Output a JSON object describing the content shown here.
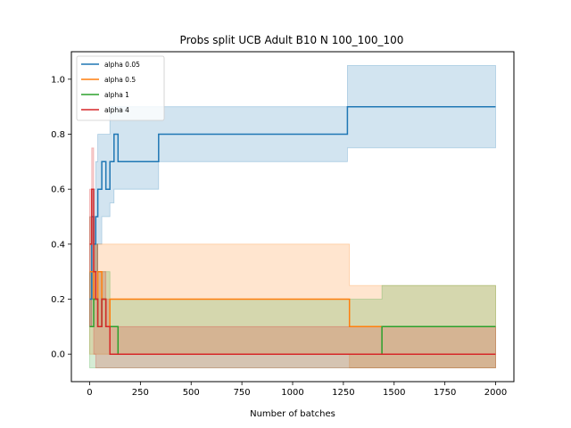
{
  "chart_data": {
    "type": "line",
    "title": "Probs split UCB Adult B10 N 100_100_100",
    "xlabel": "Number of batches",
    "ylabel": "",
    "xlim": [
      -90,
      2090
    ],
    "ylim": [
      -0.1,
      1.1
    ],
    "xticks": [
      0,
      250,
      500,
      750,
      1000,
      1250,
      1500,
      1750,
      2000
    ],
    "yticks": [
      0.0,
      0.2,
      0.4,
      0.6,
      0.8,
      1.0
    ],
    "grid": false,
    "legend_position": "top-left",
    "series": [
      {
        "name": "alpha 0.05",
        "color": "#1f77b4",
        "x": [
          0,
          10,
          20,
          30,
          40,
          60,
          80,
          100,
          120,
          140,
          160,
          180,
          220,
          300,
          340,
          400,
          500,
          600,
          700,
          760,
          860,
          1000,
          1100,
          1200,
          1270,
          1300,
          1400,
          1500,
          1600,
          1700,
          1800,
          1900,
          2000
        ],
        "y": [
          0.2,
          0.5,
          0.4,
          0.5,
          0.6,
          0.7,
          0.6,
          0.7,
          0.8,
          0.7,
          0.7,
          0.7,
          0.7,
          0.7,
          0.8,
          0.8,
          0.8,
          0.8,
          0.8,
          0.8,
          0.8,
          0.8,
          0.8,
          0.8,
          0.9,
          0.9,
          0.9,
          0.9,
          0.9,
          0.9,
          0.9,
          0.9,
          0.9
        ],
        "upper": [
          0.5,
          0.6,
          0.6,
          0.7,
          0.8,
          0.8,
          0.8,
          0.9,
          0.9,
          0.9,
          0.9,
          0.9,
          0.9,
          0.9,
          0.9,
          0.9,
          0.9,
          0.9,
          0.9,
          0.9,
          0.9,
          0.9,
          0.9,
          0.9,
          1.05,
          1.05,
          1.05,
          1.05,
          1.05,
          1.05,
          1.05,
          1.05,
          1.05
        ],
        "lower": [
          0.1,
          0.2,
          0.3,
          0.3,
          0.4,
          0.5,
          0.5,
          0.55,
          0.6,
          0.6,
          0.6,
          0.6,
          0.6,
          0.6,
          0.7,
          0.7,
          0.7,
          0.7,
          0.7,
          0.7,
          0.7,
          0.7,
          0.7,
          0.7,
          0.75,
          0.75,
          0.75,
          0.75,
          0.75,
          0.75,
          0.75,
          0.75,
          0.75
        ]
      },
      {
        "name": "alpha 0.5",
        "color": "#ff7f0e",
        "x": [
          0,
          20,
          40,
          60,
          80,
          100,
          140,
          200,
          300,
          400,
          500,
          600,
          700,
          800,
          900,
          1000,
          1100,
          1200,
          1280,
          1400,
          1500,
          1600,
          1700,
          1800,
          1900,
          2000
        ],
        "y": [
          0.3,
          0.2,
          0.3,
          0.2,
          0.1,
          0.2,
          0.2,
          0.2,
          0.2,
          0.2,
          0.2,
          0.2,
          0.2,
          0.2,
          0.2,
          0.2,
          0.2,
          0.2,
          0.1,
          0.1,
          0.1,
          0.1,
          0.1,
          0.1,
          0.1,
          0.1
        ],
        "upper": [
          0.5,
          0.4,
          0.4,
          0.4,
          0.4,
          0.4,
          0.4,
          0.4,
          0.4,
          0.4,
          0.4,
          0.4,
          0.4,
          0.4,
          0.4,
          0.4,
          0.4,
          0.4,
          0.25,
          0.25,
          0.25,
          0.25,
          0.25,
          0.25,
          0.25,
          0.25
        ],
        "lower": [
          0.0,
          0.0,
          0.0,
          0.0,
          0.0,
          0.0,
          0.0,
          0.0,
          0.0,
          0.0,
          0.0,
          0.0,
          0.0,
          0.0,
          0.0,
          0.0,
          0.0,
          0.0,
          -0.05,
          -0.05,
          -0.05,
          -0.05,
          -0.05,
          -0.05,
          -0.05,
          -0.05
        ]
      },
      {
        "name": "alpha 1",
        "color": "#2ca02c",
        "x": [
          0,
          20,
          40,
          60,
          80,
          100,
          140,
          200,
          300,
          400,
          500,
          600,
          700,
          800,
          900,
          1000,
          1100,
          1200,
          1300,
          1440,
          1500,
          1600,
          1700,
          1800,
          1900,
          2000
        ],
        "y": [
          0.1,
          0.2,
          0.1,
          0.2,
          0.1,
          0.1,
          0.0,
          0.0,
          0.0,
          0.0,
          0.0,
          0.0,
          0.0,
          0.0,
          0.0,
          0.0,
          0.0,
          0.0,
          0.0,
          0.1,
          0.1,
          0.1,
          0.1,
          0.1,
          0.1,
          0.1
        ],
        "upper": [
          0.3,
          0.4,
          0.3,
          0.3,
          0.3,
          0.2,
          0.2,
          0.2,
          0.2,
          0.2,
          0.2,
          0.2,
          0.2,
          0.2,
          0.2,
          0.2,
          0.2,
          0.2,
          0.2,
          0.25,
          0.25,
          0.25,
          0.25,
          0.25,
          0.25,
          0.25
        ],
        "lower": [
          -0.05,
          -0.05,
          -0.05,
          -0.05,
          -0.05,
          -0.05,
          -0.05,
          -0.05,
          -0.05,
          -0.05,
          -0.05,
          -0.05,
          -0.05,
          -0.05,
          -0.05,
          -0.05,
          -0.05,
          -0.05,
          -0.05,
          -0.05,
          -0.05,
          -0.05,
          -0.05,
          -0.05,
          -0.05,
          -0.05
        ]
      },
      {
        "name": "alpha 4",
        "color": "#d62728",
        "x": [
          0,
          10,
          20,
          30,
          40,
          60,
          80,
          100,
          140,
          200,
          300,
          400,
          500,
          600,
          700,
          800,
          900,
          1000,
          1200,
          1400,
          1600,
          1800,
          2000
        ],
        "y": [
          0.4,
          0.6,
          0.3,
          0.2,
          0.1,
          0.2,
          0.1,
          0.0,
          0.0,
          0.0,
          0.0,
          0.0,
          0.0,
          0.0,
          0.0,
          0.0,
          0.0,
          0.0,
          0.0,
          0.0,
          0.0,
          0.0,
          0.0
        ],
        "upper": [
          0.6,
          0.75,
          0.5,
          0.4,
          0.3,
          0.3,
          0.2,
          0.1,
          0.1,
          0.1,
          0.1,
          0.1,
          0.1,
          0.1,
          0.1,
          0.1,
          0.1,
          0.1,
          0.1,
          0.1,
          0.1,
          0.1,
          0.1
        ],
        "lower": [
          0.1,
          0.2,
          0.0,
          -0.05,
          -0.05,
          -0.05,
          -0.05,
          -0.05,
          -0.05,
          -0.05,
          -0.05,
          -0.05,
          -0.05,
          -0.05,
          -0.05,
          -0.05,
          -0.05,
          -0.05,
          -0.05,
          -0.05,
          -0.05,
          -0.05,
          -0.05
        ]
      }
    ]
  }
}
